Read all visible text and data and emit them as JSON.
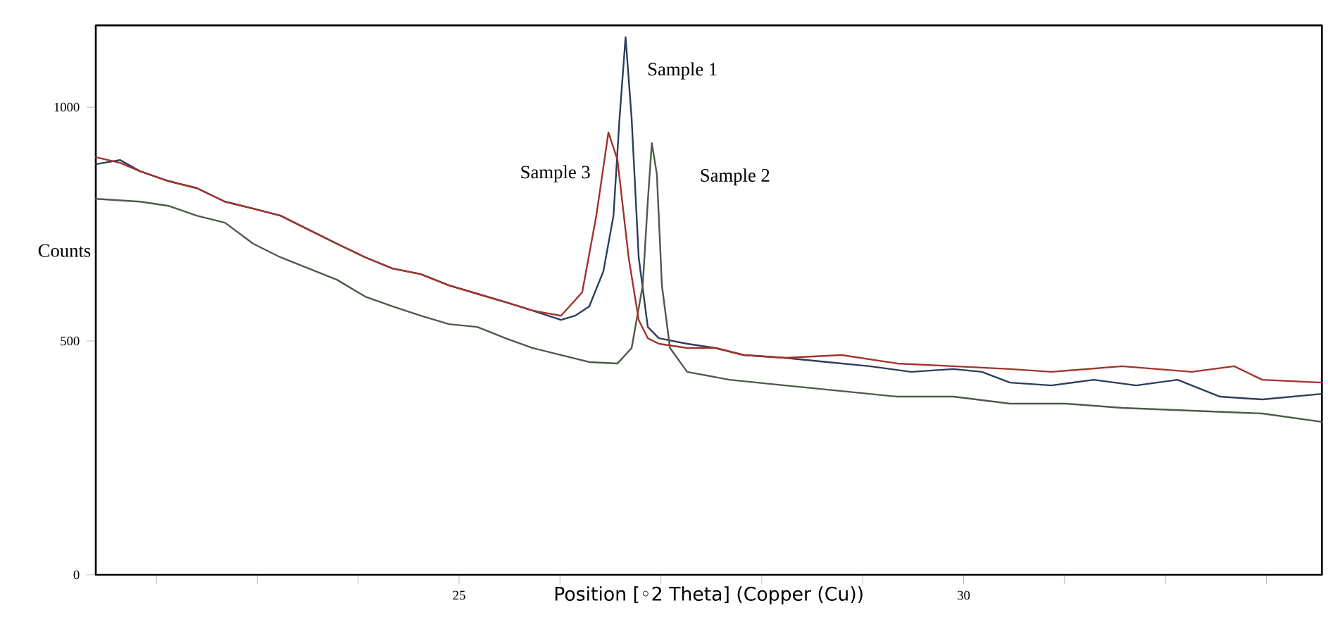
{
  "chart_data": {
    "type": "line",
    "xlabel": "Position [◦2 Theta] (Copper (Cu))",
    "ylabel": "Counts",
    "xlim": [
      21.4,
      33.55
    ],
    "ylim": [
      0,
      1175
    ],
    "xticks": [
      {
        "value": 22,
        "label": null
      },
      {
        "value": 23,
        "label": null
      },
      {
        "value": 24,
        "label": null
      },
      25,
      {
        "value": 26,
        "label": null
      },
      {
        "value": 27,
        "label": null
      },
      {
        "value": 28,
        "label": null
      },
      {
        "value": 29,
        "label": null
      },
      30,
      {
        "value": 31,
        "label": null
      },
      {
        "value": 32,
        "label": null
      },
      {
        "value": 33,
        "label": null
      }
    ],
    "yticks": [
      0,
      500,
      1000
    ],
    "grid": false,
    "legend": false,
    "marker": "none",
    "line_style": "solid",
    "series": [
      {
        "name": "Sample 1",
        "color": "#2c3e5c",
        "x": [
          21.4,
          21.64,
          21.84,
          22.12,
          22.4,
          22.68,
          22.96,
          23.23,
          23.51,
          23.79,
          24.07,
          24.34,
          24.62,
          24.9,
          25.18,
          25.46,
          25.73,
          26.01,
          26.15,
          26.29,
          26.43,
          26.53,
          26.59,
          26.65,
          26.71,
          26.78,
          26.87,
          26.98,
          27.26,
          27.54,
          27.82,
          28.23,
          28.65,
          29.07,
          29.48,
          29.9,
          30.18,
          30.46,
          30.87,
          31.29,
          31.71,
          32.12,
          32.54,
          32.96,
          33.55
        ],
        "values": [
          878,
          887,
          863,
          842,
          827,
          798,
          783,
          768,
          738,
          708,
          679,
          655,
          643,
          619,
          601,
          583,
          565,
          545,
          554,
          574,
          649,
          768,
          976,
          1150,
          976,
          679,
          530,
          506,
          494,
          485,
          470,
          464,
          455,
          446,
          434,
          440,
          434,
          411,
          405,
          417,
          405,
          417,
          381,
          375,
          387
        ]
      },
      {
        "name": "Sample 2",
        "color": "#4d5a4a",
        "x": [
          21.4,
          21.84,
          22.12,
          22.4,
          22.68,
          22.96,
          23.23,
          23.51,
          23.79,
          24.07,
          24.34,
          24.62,
          24.9,
          25.18,
          25.46,
          25.73,
          26.01,
          26.29,
          26.57,
          26.71,
          26.82,
          26.87,
          26.91,
          26.96,
          27.01,
          27.09,
          27.26,
          27.68,
          28.23,
          28.79,
          29.34,
          29.9,
          30.46,
          31.01,
          31.57,
          32.26,
          32.96,
          33.55
        ],
        "values": [
          804,
          798,
          789,
          768,
          753,
          708,
          679,
          655,
          631,
          595,
          574,
          554,
          536,
          530,
          506,
          485,
          470,
          455,
          452,
          485,
          619,
          798,
          923,
          857,
          619,
          485,
          434,
          417,
          405,
          393,
          381,
          381,
          366,
          366,
          357,
          351,
          345,
          327
        ]
      },
      {
        "name": "Sample 3",
        "color": "#a2332c",
        "x": [
          21.4,
          21.64,
          21.84,
          22.12,
          22.4,
          22.68,
          22.96,
          23.23,
          23.51,
          23.79,
          24.07,
          24.34,
          24.62,
          24.9,
          25.18,
          25.46,
          25.73,
          26.01,
          26.22,
          26.36,
          26.48,
          26.57,
          26.68,
          26.78,
          26.87,
          26.98,
          27.26,
          27.54,
          27.82,
          28.23,
          28.79,
          29.34,
          29.9,
          30.46,
          30.87,
          31.57,
          32.26,
          32.68,
          32.96,
          33.55
        ],
        "values": [
          893,
          881,
          863,
          842,
          827,
          798,
          783,
          768,
          738,
          708,
          679,
          655,
          643,
          619,
          601,
          583,
          565,
          554,
          604,
          768,
          946,
          887,
          679,
          545,
          506,
          494,
          485,
          485,
          470,
          464,
          470,
          452,
          446,
          440,
          434,
          446,
          434,
          446,
          417,
          411
        ]
      }
    ]
  }
}
